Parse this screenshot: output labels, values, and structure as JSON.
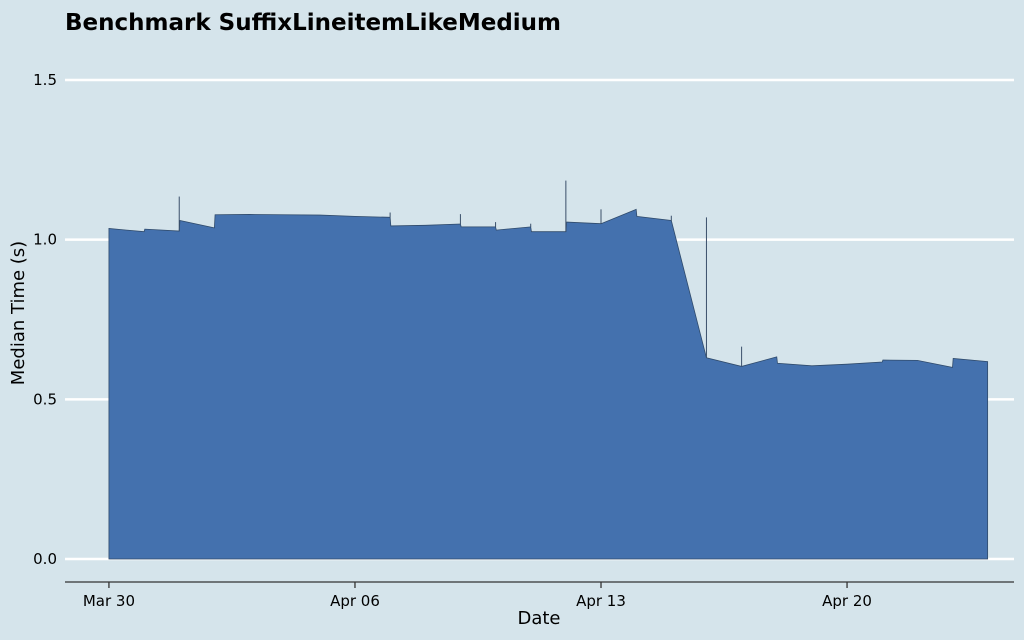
{
  "chart_data": {
    "type": "area",
    "title": "Benchmark SuffixLineitemLikeMedium",
    "xlabel": "Date",
    "ylabel": "Median Time (s)",
    "ylim": [
      0,
      1.5
    ],
    "xlim": [
      -1.25,
      25.75
    ],
    "yticks": [
      {
        "value": 0.0,
        "label": "0.0"
      },
      {
        "value": 0.5,
        "label": "0.5"
      },
      {
        "value": 1.0,
        "label": "1.0"
      },
      {
        "value": 1.5,
        "label": "1.5"
      }
    ],
    "xticks": [
      {
        "value": 0,
        "label": "Mar 30"
      },
      {
        "value": 7,
        "label": "Apr 06"
      },
      {
        "value": 14,
        "label": "Apr 13"
      },
      {
        "value": 21,
        "label": "Apr 20"
      }
    ],
    "x_units": "days since Mar 30",
    "series": [
      {
        "name": "median_time",
        "points": [
          [
            0,
            1.035
          ],
          [
            1,
            1.025
          ],
          [
            1.02,
            1.033
          ],
          [
            2,
            1.027
          ],
          [
            2.02,
            1.06
          ],
          [
            3,
            1.037
          ],
          [
            3.02,
            1.078
          ],
          [
            4,
            1.079
          ],
          [
            5,
            1.078
          ],
          [
            6,
            1.077
          ],
          [
            7,
            1.073
          ],
          [
            8,
            1.07
          ],
          [
            8.02,
            1.043
          ],
          [
            9,
            1.045
          ],
          [
            10,
            1.049
          ],
          [
            10.02,
            1.04
          ],
          [
            11,
            1.04
          ],
          [
            11.02,
            1.03
          ],
          [
            12,
            1.04
          ],
          [
            12.02,
            1.025
          ],
          [
            13,
            1.025
          ],
          [
            13.02,
            1.055
          ],
          [
            14,
            1.05
          ],
          [
            15,
            1.095
          ],
          [
            15.02,
            1.073
          ],
          [
            16,
            1.06
          ],
          [
            17,
            0.63
          ],
          [
            18,
            0.603
          ],
          [
            19,
            0.633
          ],
          [
            19.02,
            0.613
          ],
          [
            20,
            0.605
          ],
          [
            21,
            0.61
          ],
          [
            22,
            0.617
          ],
          [
            22.02,
            0.623
          ],
          [
            23,
            0.622
          ],
          [
            24,
            0.6
          ],
          [
            24.02,
            0.628
          ],
          [
            25,
            0.618
          ]
        ],
        "spikes": [
          [
            2,
            1.135
          ],
          [
            8,
            1.085
          ],
          [
            10,
            1.08
          ],
          [
            11,
            1.055
          ],
          [
            12,
            1.05
          ],
          [
            13,
            1.185
          ],
          [
            14,
            1.095
          ],
          [
            16,
            1.075
          ],
          [
            17,
            1.07
          ],
          [
            18,
            0.665
          ]
        ]
      }
    ]
  }
}
